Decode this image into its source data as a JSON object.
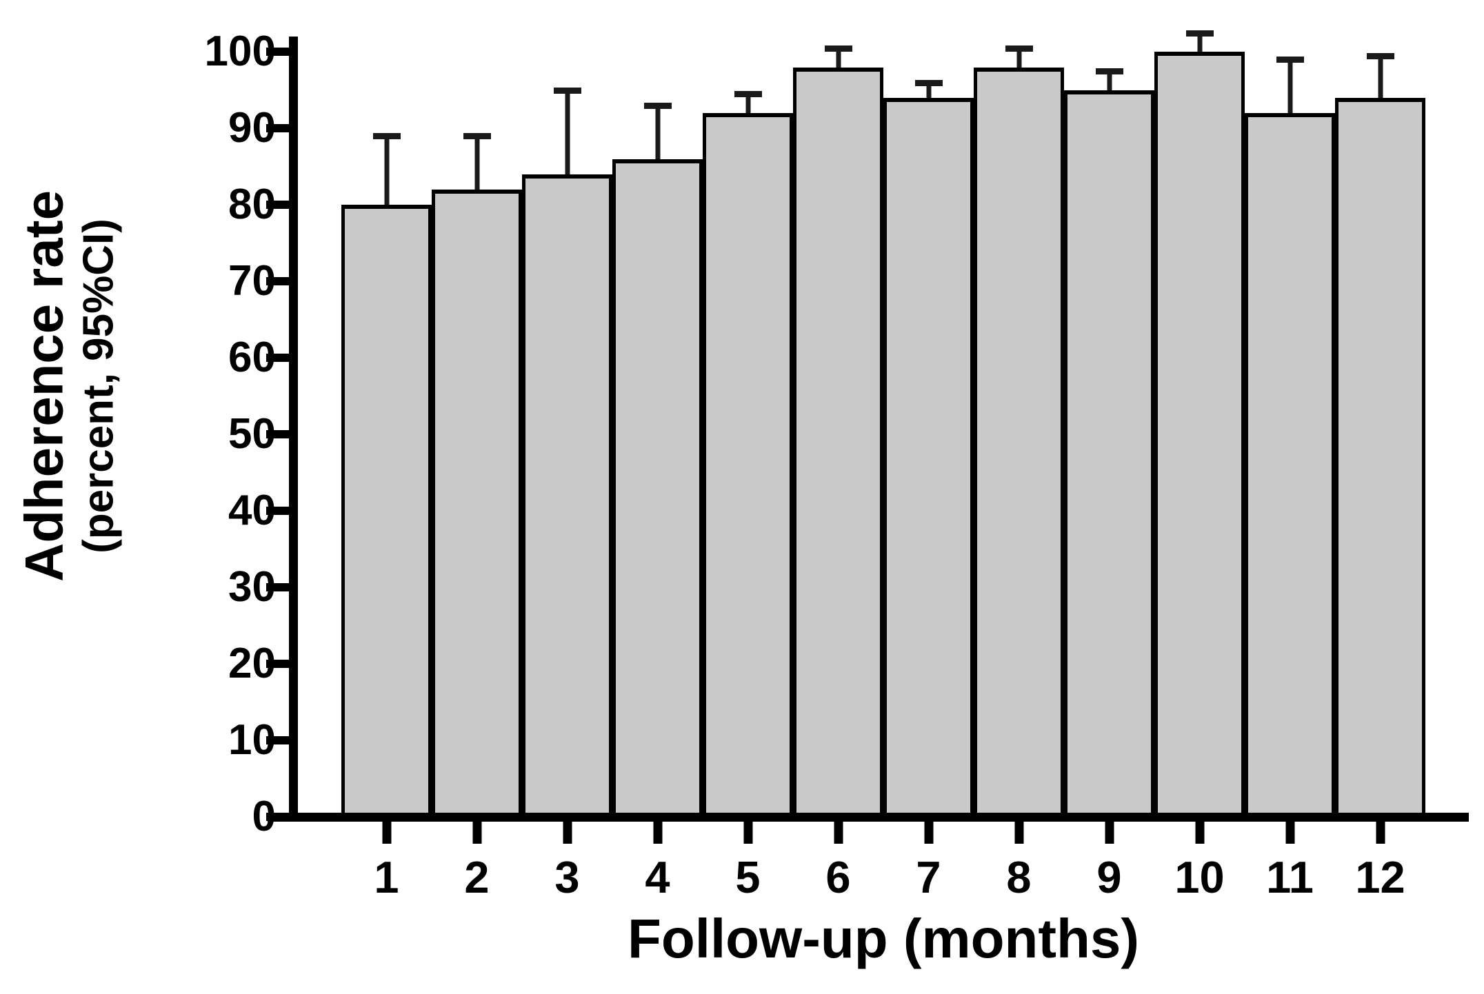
{
  "figure": {
    "y_axis_title_line1": "Adherence rate",
    "y_axis_title_line2": "(percent, 95%CI)",
    "x_axis_title": "Follow-up (months)",
    "y_tick_labels": [
      "0",
      "10",
      "20",
      "30",
      "40",
      "50",
      "60",
      "70",
      "80",
      "90",
      "100"
    ],
    "colors": {
      "background": "#ffffff",
      "bar_fill": "#c9c9c9",
      "bar_border": "#000000",
      "axis": "#000000",
      "error_bar": "#1a1a1a"
    }
  },
  "chart_data": {
    "type": "bar",
    "title": "",
    "categories": [
      "1",
      "2",
      "3",
      "4",
      "5",
      "6",
      "7",
      "8",
      "9",
      "10",
      "11",
      "12"
    ],
    "values": [
      80,
      82,
      84,
      86,
      92,
      98,
      94,
      98,
      95,
      100,
      92,
      94
    ],
    "error_upper": [
      89,
      89,
      95,
      93,
      94.5,
      100.5,
      96,
      100.5,
      97.5,
      102.5,
      99,
      99.5
    ],
    "error_bars": "upper 95% confidence interval whiskers",
    "xlabel": "Follow-up (months)",
    "ylabel": "Adherence rate (percent, 95%CI)",
    "ylim": [
      0,
      100
    ],
    "y_tick_step": 10,
    "grid": false,
    "legend": false,
    "bar_color": "#c9c9c9"
  }
}
